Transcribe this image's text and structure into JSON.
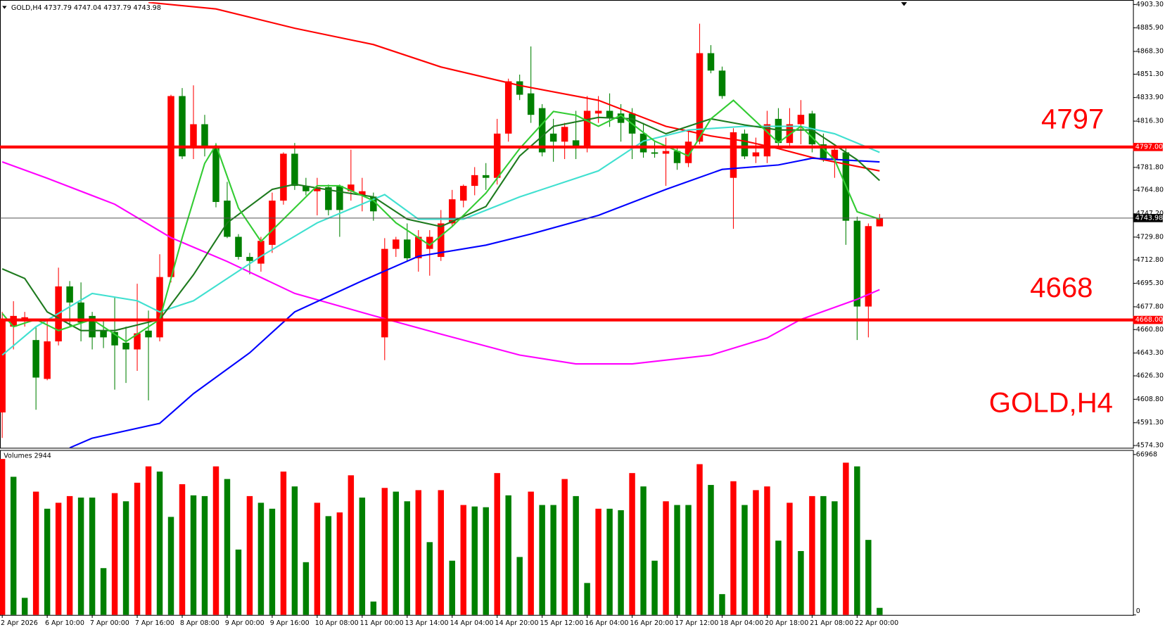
{
  "chart_data": {
    "type": "candlestick",
    "header": "GOLD,H4  4737.79 4747.04 4737.79 4743.98",
    "watermark": "GOLD,H4",
    "ylim": [
      4572.6,
      4905
    ],
    "yticks": [
      {
        "value": 4903.3,
        "label": "4903.30"
      },
      {
        "value": 4885.9,
        "label": "4885.90"
      },
      {
        "value": 4868.3,
        "label": "4868.30"
      },
      {
        "value": 4851.3,
        "label": "4851.30"
      },
      {
        "value": 4833.9,
        "label": "4833.90"
      },
      {
        "value": 4816.3,
        "label": "4816.30"
      },
      {
        "value": 4781.8,
        "label": "4781.80"
      },
      {
        "value": 4764.8,
        "label": "4764.80"
      },
      {
        "value": 4747.2,
        "label": "4747.20"
      },
      {
        "value": 4729.8,
        "label": "4729.80"
      },
      {
        "value": 4712.8,
        "label": "4712.80"
      },
      {
        "value": 4695.3,
        "label": "4695.30"
      },
      {
        "value": 4677.8,
        "label": "4677.80"
      },
      {
        "value": 4660.8,
        "label": "4660.80"
      },
      {
        "value": 4643.3,
        "label": "4643.30"
      },
      {
        "value": 4626.3,
        "label": "4626.30"
      },
      {
        "value": 4608.8,
        "label": "4608.80"
      },
      {
        "value": 4591.3,
        "label": "4591.30"
      },
      {
        "value": 4574.3,
        "label": "4574.30"
      }
    ],
    "time_labels": [
      "2 Apr 2026",
      "6 Apr 10:00",
      "7 Apr 00:00",
      "7 Apr 16:00",
      "8 Apr 08:00",
      "9 Apr 00:00",
      "9 Apr 16:00",
      "10 Apr 08:00",
      "11 Apr 00:00",
      "13 Apr 14:00",
      "14 Apr 04:00",
      "14 Apr 20:00",
      "15 Apr 12:00",
      "16 Apr 04:00",
      "16 Apr 20:00",
      "17 Apr 12:00",
      "18 Apr 04:00",
      "20 Apr 18:00",
      "21 Apr 08:00",
      "22 Apr 00:00"
    ],
    "up_color": "#ff0000",
    "down_color": "#008000",
    "open": [
      4599,
      4663,
      4667,
      4653,
      4624,
      4652,
      4693,
      4681,
      4671,
      4660,
      4659,
      4651,
      4646,
      4660,
      4655,
      4700,
      4835,
      4797,
      4814,
      4797,
      4757,
      4730,
      4715,
      4710,
      4724,
      4757,
      4792,
      4768,
      4764,
      4767,
      4768,
      4764,
      4761,
      4760,
      4655,
      4721,
      4728,
      4714,
      4721,
      4715,
      4740,
      4757,
      4768,
      4776,
      4774,
      4807,
      4846,
      4837,
      4826,
      4807,
      4801,
      4802,
      4797,
      4822,
      4824,
      4822,
      4822,
      4807,
      4793,
      4792,
      4794,
      4785,
      4801,
      4867,
      4854,
      4774,
      4807,
      4790,
      4790,
      4818,
      4800,
      4814,
      4822,
      4799,
      4788,
      4793,
      4742,
      4678,
      4737.79
    ],
    "high": [
      4674,
      4682,
      4674,
      4663,
      4668,
      4707,
      4697,
      4696,
      4674,
      4668,
      4685,
      4663,
      4695,
      4675,
      4717,
      4836,
      4841,
      4843,
      4821,
      4800,
      4771,
      4732,
      4718,
      4730,
      4763,
      4793,
      4800,
      4774,
      4774,
      4769,
      4769,
      4795,
      4774,
      4763,
      4729,
      4730,
      4740,
      4735,
      4735,
      4750,
      4765,
      4769,
      4782,
      4785,
      4818,
      4848,
      4851,
      4872,
      4829,
      4818,
      4815,
      4824,
      4835,
      4835,
      4837,
      4829,
      4826,
      4815,
      4801,
      4804,
      4797,
      4810,
      4889,
      4873,
      4857,
      4811,
      4810,
      4804,
      4824,
      4826,
      4826,
      4832,
      4824,
      4807,
      4799,
      4796,
      4745,
      4740,
      4747.04
    ],
    "low": [
      4580,
      4646,
      4663,
      4601,
      4623,
      4649,
      4663,
      4652,
      4646,
      4647,
      4616,
      4621,
      4630,
      4608,
      4652,
      4696,
      4788,
      4788,
      4790,
      4752,
      4729,
      4713,
      4702,
      4704,
      4718,
      4754,
      4765,
      4761,
      4746,
      4746,
      4730,
      4757,
      4749,
      4742,
      4638,
      4715,
      4712,
      4704,
      4701,
      4712,
      4738,
      4752,
      4761,
      4765,
      4769,
      4801,
      4832,
      4815,
      4790,
      4786,
      4788,
      4788,
      4793,
      4815,
      4812,
      4801,
      4788,
      4789,
      4789,
      4768,
      4780,
      4782,
      4799,
      4852,
      4833,
      4736,
      4788,
      4785,
      4785,
      4796,
      4796,
      4799,
      4793,
      4786,
      4774,
      4724,
      4653,
      4655,
      4737.79
    ],
    "close": [
      4668,
      4671,
      4670,
      4625,
      4652,
      4693,
      4681,
      4666,
      4655,
      4655,
      4649,
      4646,
      4658,
      4655,
      4700,
      4835,
      4790,
      4814,
      4797,
      4756,
      4730,
      4715,
      4712,
      4727,
      4757,
      4792,
      4768,
      4764,
      4767,
      4750,
      4750,
      4769,
      4764,
      4749,
      4721,
      4728,
      4714,
      4730,
      4730,
      4740,
      4758,
      4768,
      4776,
      4774,
      4807,
      4846,
      4836,
      4821,
      4793,
      4801,
      4812,
      4797,
      4824,
      4824,
      4819,
      4815,
      4807,
      4793,
      4792,
      4794,
      4785,
      4801,
      4867,
      4854,
      4835,
      4808,
      4790,
      4793,
      4814,
      4800,
      4814,
      4821,
      4799,
      4788,
      4795,
      4742,
      4678,
      4738,
      4743.98
    ],
    "moving_averages": [
      {
        "color": "#ff0000",
        "x": [
          13,
          19,
          26,
          33,
          39,
          46,
          53,
          59,
          63,
          66,
          69,
          72,
          78
        ],
        "values": [
          4904.9,
          4900,
          4885.6,
          4873.4,
          4856.7,
          4842.9,
          4831.8,
          4812.4,
          4805.2,
          4801.4,
          4795.8,
          4789.2,
          4779.2
        ]
      },
      {
        "color": "#ff00ff",
        "x": [
          0,
          4,
          10,
          15,
          20,
          26,
          33,
          39,
          46,
          51,
          56,
          63,
          68,
          71,
          76,
          78
        ],
        "values": [
          4785.9,
          4773.7,
          4754.3,
          4729.4,
          4711.6,
          4687.8,
          4671.2,
          4657.4,
          4641.8,
          4635.2,
          4635.2,
          4641.8,
          4654.6,
          4668.4,
          4683.4,
          4690.6
        ]
      },
      {
        "color": "#0000ff",
        "x": [
          6,
          8,
          14,
          17,
          22,
          26,
          32,
          37,
          43,
          47,
          53,
          59,
          64,
          69,
          72,
          78
        ],
        "values": [
          4572.6,
          4579.8,
          4590.9,
          4613,
          4643.5,
          4674,
          4697.2,
          4715.5,
          4723.8,
          4732.1,
          4746,
          4765.4,
          4780.3,
          4783.6,
          4788.6,
          4785.9
        ]
      },
      {
        "color": "#40e0d0",
        "x": [
          0,
          3,
          8,
          12,
          14,
          17,
          20,
          23,
          28,
          34,
          37,
          41,
          46,
          53,
          57,
          61,
          66,
          71,
          74,
          78
        ],
        "values": [
          4641.8,
          4662.9,
          4687.8,
          4682.3,
          4674,
          4682.3,
          4698.9,
          4715.5,
          4740.4,
          4761.5,
          4743.2,
          4743.2,
          4759.8,
          4779.2,
          4801.4,
          4809.7,
          4812.4,
          4812.4,
          4806.9,
          4793
        ]
      },
      {
        "color": "#1e7a1e",
        "x": [
          0,
          2,
          4,
          7,
          10,
          14,
          17,
          20,
          24,
          26,
          30,
          33,
          36,
          39,
          43,
          46,
          49,
          53,
          56,
          59,
          63,
          66,
          69,
          72,
          76,
          78
        ],
        "values": [
          4706.1,
          4698.9,
          4674,
          4660.1,
          4660.1,
          4668.4,
          4701.7,
          4740.4,
          4765.4,
          4769.2,
          4763.7,
          4759.8,
          4743.2,
          4737.7,
          4752.6,
          4790.3,
          4812.4,
          4819.1,
          4818,
          4806.9,
          4818,
          4813.5,
          4809.7,
          4809.7,
          4787.5,
          4772
        ]
      },
      {
        "color": "#33cc33",
        "x": [
          0,
          1,
          3,
          5,
          8,
          11,
          14,
          16,
          18,
          19,
          21,
          23,
          25,
          28,
          30,
          33,
          35,
          38,
          40,
          43,
          46,
          49,
          51,
          53,
          55,
          58,
          61,
          63,
          65,
          69,
          71,
          74,
          76,
          78
        ],
        "values": [
          4672.9,
          4662.9,
          4668.4,
          4660.1,
          4668.4,
          4651.8,
          4668.4,
          4729.4,
          4784.7,
          4798.6,
          4751.5,
          4726.6,
          4743.2,
          4768.1,
          4768.1,
          4757,
          4740.4,
          4723.8,
          4737.7,
          4762.6,
          4795.8,
          4823.5,
          4820.7,
          4812.4,
          4820.7,
          4801.4,
          4790.3,
          4818,
          4831.8,
          4800.3,
          4812.4,
          4787.5,
          4748.7,
          4743.2
        ]
      }
    ],
    "levels": [
      {
        "value": 4797,
        "label": "4797",
        "axis_label": "4797.00",
        "color": "#ff0000"
      },
      {
        "value": 4668,
        "label": "4668",
        "axis_label": "4668.00",
        "color": "#ff0000"
      }
    ],
    "current_price": {
      "value": 4743.98,
      "axis_label": "4743.98"
    },
    "volume": {
      "title": "Volumes 2944",
      "ylim": [
        0,
        68519
      ],
      "yticks": [
        0,
        66968
      ],
      "up_color": "#ff0000",
      "down_color": "#008000",
      "values": [
        65108,
        57667,
        7131,
        51467,
        44336,
        46816,
        49606,
        48986,
        48986,
        19533,
        50847,
        47436,
        55187,
        62008,
        59838,
        40925,
        54567,
        49916,
        49606,
        62008,
        56737,
        27284,
        49606,
        46816,
        44336,
        59838,
        53637,
        22013,
        46816,
        41235,
        42786,
        58288,
        48986,
        5581,
        53017,
        51467,
        47436,
        52087,
        30384,
        52087,
        22633,
        45886,
        45266,
        44956,
        59218,
        49916,
        24183,
        51467,
        45886,
        45886,
        56737,
        49606,
        13332,
        44336,
        44336,
        43716,
        59218,
        53637,
        22633,
        47436,
        45886,
        45886,
        62938,
        54257,
        8681,
        55807,
        45886,
        52087,
        53637,
        31004,
        46816,
        26663,
        49606,
        49606,
        47436,
        63558,
        62008,
        31314,
        2944
      ]
    }
  }
}
